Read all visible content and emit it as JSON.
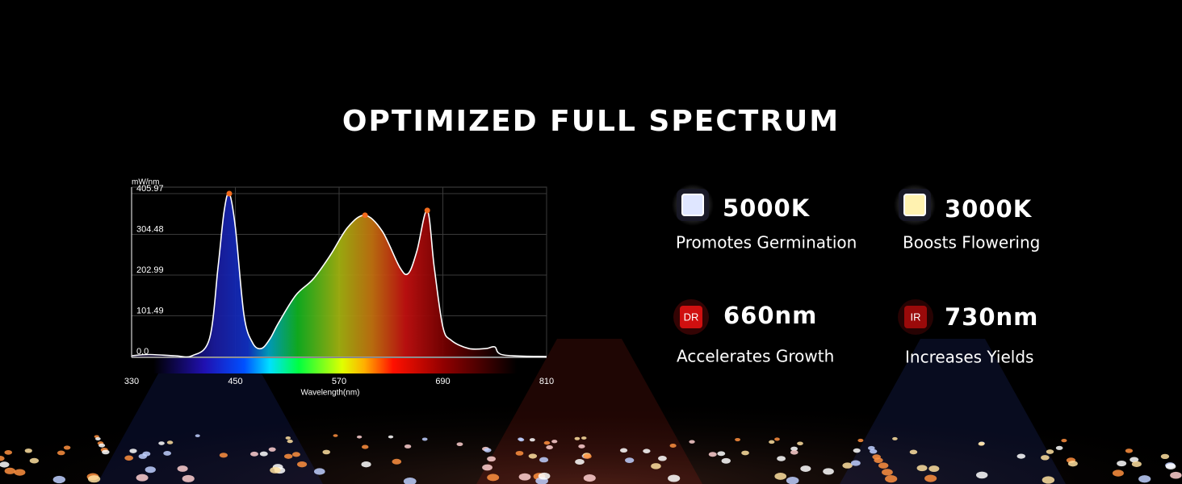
{
  "title": "OPTIMIZED FULL SPECTRUM",
  "chart_data": {
    "type": "area",
    "y_label": "mW/nm",
    "x_label": "Wavelength(nm)",
    "x": [
      330,
      350,
      380,
      400,
      420,
      430,
      437,
      443,
      450,
      460,
      470,
      480,
      490,
      500,
      520,
      540,
      560,
      580,
      600,
      620,
      640,
      650,
      660,
      672,
      680,
      690,
      700,
      720,
      740,
      750,
      760,
      810
    ],
    "values": [
      2,
      5,
      2,
      2,
      44,
      223,
      362,
      405.97,
      322,
      103,
      34,
      20,
      44,
      84,
      153,
      193,
      253,
      322,
      352,
      312,
      223,
      207,
      263,
      364,
      223,
      74,
      40,
      20,
      20,
      24,
      4,
      0
    ],
    "color": "#ffffff",
    "marker_color": "#f26b1d",
    "xlim": [
      330,
      810
    ],
    "xticks": [
      330,
      450,
      570,
      690,
      810
    ],
    "ylim": [
      0,
      422
    ],
    "yticks": [
      {
        "value": 0,
        "label": "0.0"
      },
      101.49,
      202.99,
      304.48,
      405.97
    ],
    "grid": true
  },
  "features": [
    {
      "title": "5000K",
      "description": "Promotes Germination",
      "color": "#dfe6ff"
    },
    {
      "title": "3000K",
      "description": "Boosts Flowering",
      "color": "#fff2b0"
    },
    {
      "title": "660nm",
      "description": "Accelerates Growth",
      "color": "#d01010",
      "badge": "DR"
    },
    {
      "title": "730nm",
      "description": "Increases Yields",
      "color": "#9a0a0a",
      "badge": "IR"
    }
  ]
}
